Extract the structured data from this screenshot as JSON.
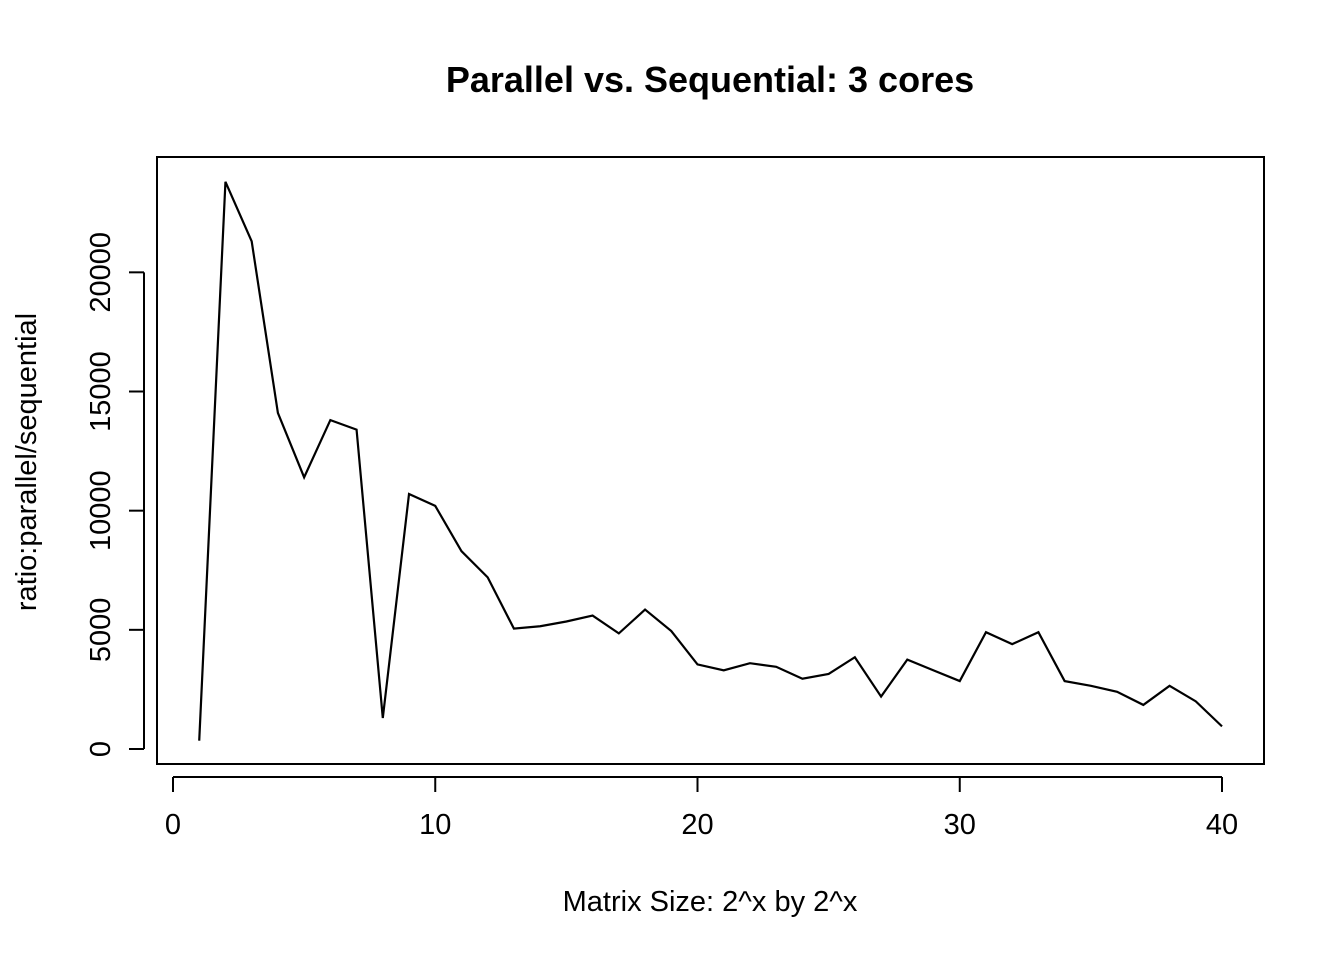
{
  "chart_data": {
    "type": "line",
    "title": "Parallel vs. Sequential: 3 cores",
    "xlabel": "Matrix Size: 2^x by 2^x",
    "ylabel": "ratio:parallel/sequential",
    "xlim": [
      0,
      40
    ],
    "ylim": [
      0,
      24000
    ],
    "x_ticks": [
      0,
      10,
      20,
      30,
      40
    ],
    "x_tick_labels": [
      "0",
      "10",
      "20",
      "30",
      "40"
    ],
    "y_ticks": [
      0,
      5000,
      10000,
      15000,
      20000
    ],
    "y_tick_labels": [
      "0",
      "5000",
      "10000",
      "15000",
      "20000"
    ],
    "grid": false,
    "line_color": "#000000",
    "series": [
      {
        "x": [
          1,
          2,
          3,
          4,
          5,
          6,
          7,
          8,
          9,
          10,
          11,
          12,
          13,
          14,
          15,
          16,
          17,
          18,
          19,
          20,
          21,
          22,
          23,
          24,
          25,
          26,
          27,
          28,
          29,
          30,
          31,
          32,
          33,
          34,
          35,
          36,
          37,
          38,
          39,
          40
        ],
        "values": [
          350,
          23800,
          21300,
          14100,
          11400,
          13800,
          13400,
          1300,
          10700,
          10200,
          8300,
          7200,
          5050,
          5150,
          5350,
          5600,
          4850,
          5850,
          4950,
          3550,
          3300,
          3600,
          3450,
          2950,
          3150,
          3850,
          2200,
          3750,
          3300,
          2850,
          4900,
          4400,
          4900,
          2850,
          2650,
          2400,
          1850,
          2650,
          2000,
          950
        ]
      }
    ]
  }
}
